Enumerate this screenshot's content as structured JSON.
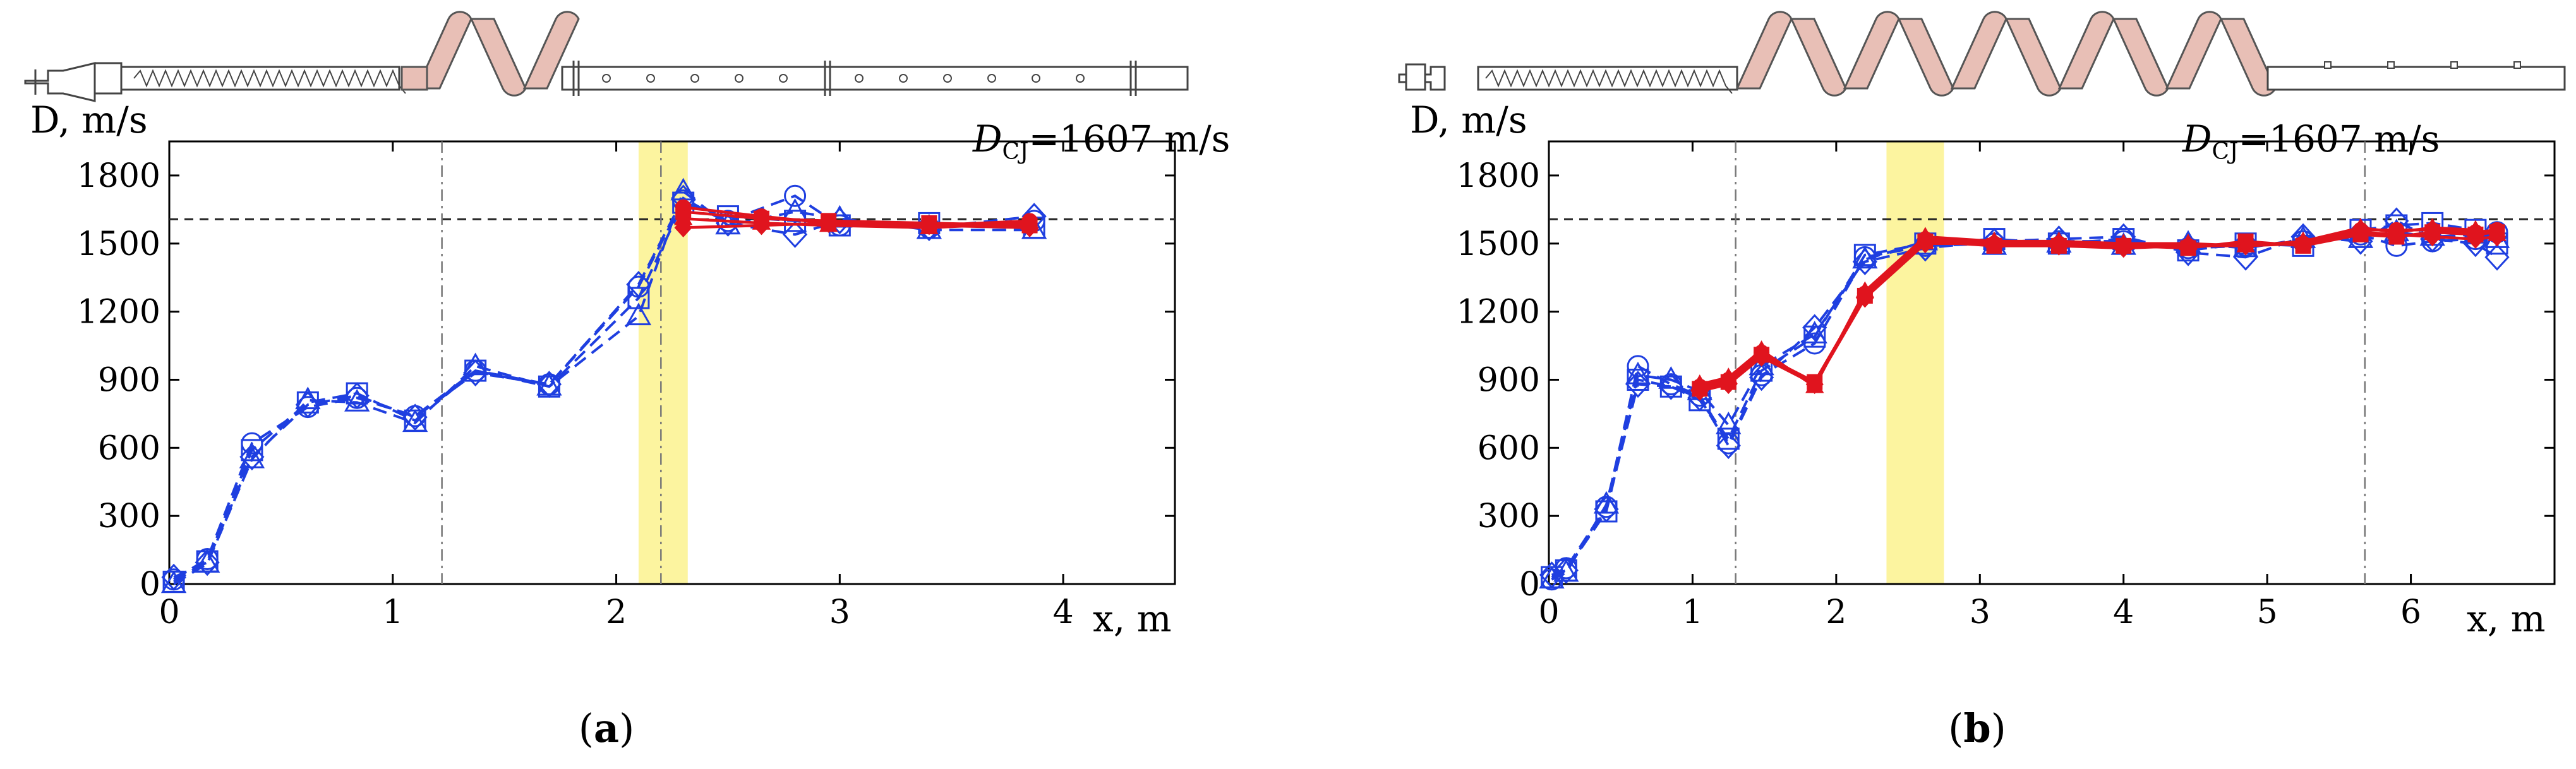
{
  "panels": [
    {
      "caption": "a",
      "chart_data": {
        "type": "line",
        "x_label": "x, m",
        "y_label": "D, m/s",
        "xlim": [
          0,
          4.5
        ],
        "ylim": [
          0,
          1950
        ],
        "xticks": [
          "0",
          "1",
          "2",
          "3",
          "4"
        ],
        "yticks": [
          "0",
          "300",
          "600",
          "900",
          "1200",
          "1500",
          "1800"
        ],
        "reference": {
          "label": "=1607 m/s",
          "value": 1607,
          "symbol": "D",
          "subscript": "CJ"
        },
        "vlines": [
          1.22,
          2.2
        ],
        "band": [
          2.1,
          2.32
        ],
        "series": [
          {
            "color": "#1f3fe0",
            "dashed": true,
            "marker": "circle",
            "x": [
              0.02,
              0.17,
              0.37,
              0.62,
              0.84,
              1.1,
              1.37,
              1.7,
              2.1,
              2.3,
              2.5,
              2.8,
              3.0,
              3.4,
              3.87
            ],
            "y": [
              20,
              110,
              620,
              780,
              820,
              740,
              940,
              880,
              1310,
              1690,
              1600,
              1710,
              1580,
              1570,
              1600
            ]
          },
          {
            "color": "#1f3fe0",
            "dashed": true,
            "marker": "square",
            "x": [
              0.02,
              0.17,
              0.37,
              0.62,
              0.84,
              1.1,
              1.37,
              1.7,
              2.1,
              2.3,
              2.5,
              2.8,
              3.0,
              3.4,
              3.87
            ],
            "y": [
              10,
              100,
              590,
              800,
              840,
              720,
              940,
              870,
              1260,
              1680,
              1620,
              1600,
              1580,
              1590,
              1570
            ]
          },
          {
            "color": "#1f3fe0",
            "dashed": true,
            "marker": "triangle",
            "x": [
              0.02,
              0.17,
              0.37,
              0.62,
              0.84,
              1.1,
              1.37,
              1.7,
              2.1,
              2.3,
              2.5,
              2.8,
              3.0,
              3.4,
              3.87
            ],
            "y": [
              0,
              90,
              550,
              810,
              800,
              710,
              960,
              870,
              1180,
              1730,
              1580,
              1640,
              1610,
              1560,
              1560
            ]
          },
          {
            "color": "#1f3fe0",
            "dashed": true,
            "marker": "diamond",
            "x": [
              0.02,
              0.17,
              0.37,
              0.62,
              0.84,
              1.1,
              1.37,
              1.7,
              2.1,
              2.3,
              2.5,
              2.8,
              3.0,
              3.4,
              3.87
            ],
            "y": [
              30,
              95,
              560,
              790,
              830,
              735,
              930,
              880,
              1320,
              1700,
              1590,
              1540,
              1600,
              1570,
              1620
            ]
          },
          {
            "color": "#e0141e",
            "dashed": false,
            "marker": "circle-filled",
            "x": [
              2.3,
              2.65,
              2.95,
              3.4,
              3.85
            ],
            "y": [
              1660,
              1620,
              1590,
              1580,
              1600
            ]
          },
          {
            "color": "#e0141e",
            "dashed": false,
            "marker": "square-filled",
            "x": [
              2.3,
              2.65,
              2.95,
              3.4,
              3.85
            ],
            "y": [
              1640,
              1610,
              1600,
              1590,
              1580
            ]
          },
          {
            "color": "#e0141e",
            "dashed": false,
            "marker": "triangle-filled",
            "x": [
              2.3,
              2.65,
              2.95,
              3.4,
              3.85
            ],
            "y": [
              1610,
              1590,
              1580,
              1570,
              1590
            ]
          },
          {
            "color": "#e0141e",
            "dashed": false,
            "marker": "diamond-filled",
            "x": [
              2.3,
              2.65,
              2.95,
              3.4,
              3.85
            ],
            "y": [
              1570,
              1580,
              1590,
              1580,
              1570
            ]
          }
        ]
      }
    },
    {
      "caption": "b",
      "chart_data": {
        "type": "line",
        "x_label": "x, m",
        "y_label": "D, m/s",
        "xlim": [
          0,
          7.0
        ],
        "ylim": [
          0,
          1950
        ],
        "xticks": [
          "0",
          "1",
          "2",
          "3",
          "4",
          "5",
          "6"
        ],
        "yticks": [
          "0",
          "300",
          "600",
          "900",
          "1200",
          "1500",
          "1800"
        ],
        "reference": {
          "label": "=1607 m/s",
          "value": 1607,
          "symbol": "D",
          "subscript": "CJ"
        },
        "vlines": [
          1.3,
          5.68
        ],
        "band": [
          2.35,
          2.75
        ],
        "series": [
          {
            "color": "#1f3fe0",
            "dashed": true,
            "marker": "circle",
            "x": [
              0.02,
              0.12,
              0.4,
              0.62,
              0.85,
              1.05,
              1.25,
              1.48,
              1.85,
              2.2,
              2.62,
              3.1,
              3.55,
              4.0,
              4.45,
              4.85,
              5.25,
              5.65,
              5.9,
              6.15,
              6.45,
              6.6
            ],
            "y": [
              20,
              70,
              340,
              960,
              880,
              830,
              620,
              920,
              1060,
              1440,
              1490,
              1500,
              1510,
              1510,
              1480,
              1490,
              1510,
              1540,
              1490,
              1510,
              1520,
              1550
            ]
          },
          {
            "color": "#1f3fe0",
            "dashed": true,
            "marker": "square",
            "x": [
              0.02,
              0.12,
              0.4,
              0.62,
              0.85,
              1.05,
              1.25,
              1.48,
              1.85,
              2.2,
              2.62,
              3.1,
              3.55,
              4.0,
              4.45,
              4.85,
              5.25,
              5.65,
              5.9,
              6.15,
              6.45,
              6.6
            ],
            "y": [
              30,
              60,
              320,
              900,
              870,
              810,
              640,
              940,
              1090,
              1450,
              1500,
              1520,
              1500,
              1520,
              1470,
              1500,
              1490,
              1560,
              1580,
              1590,
              1560,
              1500
            ]
          },
          {
            "color": "#1f3fe0",
            "dashed": true,
            "marker": "triangle",
            "x": [
              0.02,
              0.12,
              0.4,
              0.62,
              0.85,
              1.05,
              1.25,
              1.48,
              1.85,
              2.2,
              2.62,
              3.1,
              3.55,
              4.0,
              4.45,
              4.85,
              5.25,
              5.65,
              5.9,
              6.15,
              6.45,
              6.6
            ],
            "y": [
              20,
              50,
              350,
              920,
              900,
              850,
              700,
              960,
              1100,
              1430,
              1510,
              1490,
              1500,
              1490,
              1500,
              1480,
              1520,
              1520,
              1550,
              1530,
              1540,
              1520
            ]
          },
          {
            "color": "#1f3fe0",
            "dashed": true,
            "marker": "diamond",
            "x": [
              0.02,
              0.12,
              0.4,
              0.62,
              0.85,
              1.05,
              1.25,
              1.48,
              1.85,
              2.2,
              2.62,
              3.1,
              3.55,
              4.0,
              4.45,
              4.85,
              5.25,
              5.65,
              5.9,
              6.15,
              6.45,
              6.6
            ],
            "y": [
              40,
              60,
              330,
              880,
              870,
              820,
              610,
              910,
              1130,
              1420,
              1480,
              1510,
              1520,
              1530,
              1460,
              1440,
              1530,
              1510,
              1600,
              1520,
              1500,
              1440
            ]
          },
          {
            "color": "#e0141e",
            "dashed": false,
            "marker": "circle-filled",
            "x": [
              1.05,
              1.25,
              1.48,
              1.85,
              2.2,
              2.62,
              3.1,
              3.55,
              4.0,
              4.45,
              4.85,
              5.25,
              5.65,
              5.9,
              6.15,
              6.45,
              6.6
            ],
            "y": [
              870,
              900,
              1020,
              880,
              1280,
              1520,
              1500,
              1500,
              1490,
              1490,
              1500,
              1500,
              1560,
              1560,
              1560,
              1550,
              1560
            ]
          },
          {
            "color": "#e0141e",
            "dashed": false,
            "marker": "square-filled",
            "x": [
              1.05,
              1.25,
              1.48,
              1.85,
              2.2,
              2.62,
              3.1,
              3.55,
              4.0,
              4.45,
              4.85,
              5.25,
              5.65,
              5.9,
              6.15,
              6.45,
              6.6
            ],
            "y": [
              860,
              890,
              1010,
              890,
              1270,
              1510,
              1490,
              1490,
              1490,
              1480,
              1510,
              1490,
              1540,
              1530,
              1550,
              1540,
              1550
            ]
          },
          {
            "color": "#e0141e",
            "dashed": false,
            "marker": "triangle-filled",
            "x": [
              1.05,
              1.25,
              1.48,
              1.85,
              2.2,
              2.62,
              3.1,
              3.55,
              4.0,
              4.45,
              4.85,
              5.25,
              5.65,
              5.9,
              6.15,
              6.45,
              6.6
            ],
            "y": [
              880,
              910,
              1030,
              870,
              1290,
              1530,
              1510,
              1510,
              1500,
              1500,
              1490,
              1510,
              1570,
              1550,
              1570,
              1560,
              1540
            ]
          },
          {
            "color": "#e0141e",
            "dashed": false,
            "marker": "diamond-filled",
            "x": [
              1.05,
              1.25,
              1.48,
              1.85,
              2.2,
              2.62,
              3.1,
              3.55,
              4.0,
              4.45,
              4.85,
              5.25,
              5.65,
              5.9,
              6.15,
              6.45,
              6.6
            ],
            "y": [
              850,
              880,
              1000,
              880,
              1260,
              1500,
              1500,
              1490,
              1480,
              1490,
              1490,
              1500,
              1550,
              1540,
              1530,
              1520,
              1530
            ]
          }
        ]
      }
    }
  ],
  "colors": {
    "blue": "#1f3fe0",
    "red": "#e0141e",
    "band": "#fbf28e",
    "coil": "#e8bfb6"
  }
}
